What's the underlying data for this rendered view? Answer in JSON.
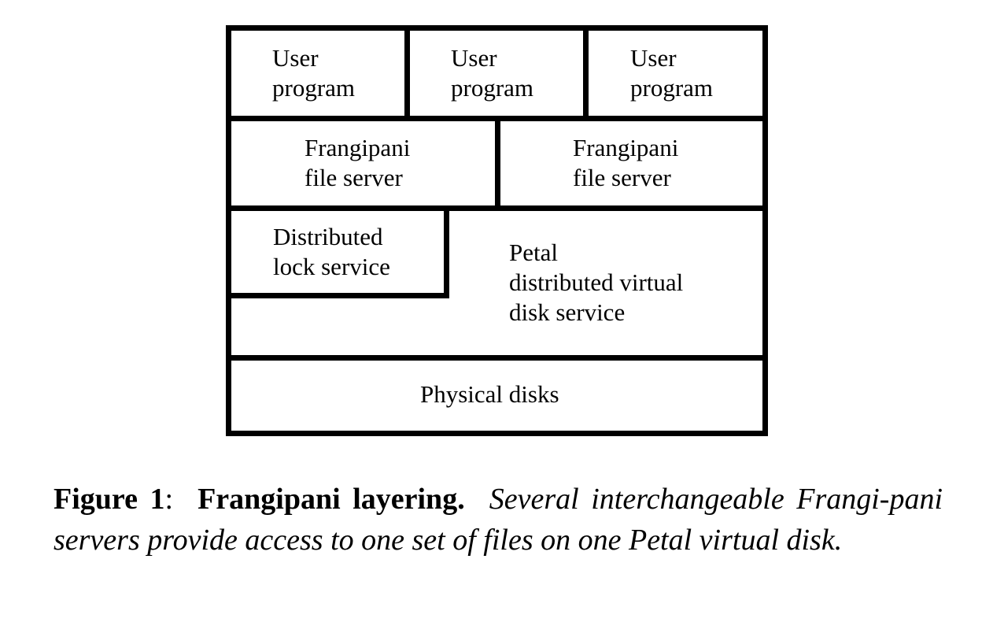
{
  "diagram": {
    "user_programs": [
      {
        "line1": "User",
        "line2": "program"
      },
      {
        "line1": "User",
        "line2": "program"
      },
      {
        "line1": "User",
        "line2": "program"
      }
    ],
    "file_servers": [
      {
        "line1": "Frangipani",
        "line2": "file server"
      },
      {
        "line1": "Frangipani",
        "line2": "file server"
      }
    ],
    "lock_service": {
      "line1": "Distributed",
      "line2": "lock service"
    },
    "petal": {
      "line1": "Petal",
      "line2": "distributed virtual",
      "line3": "disk service"
    },
    "physical_disks": {
      "label": "Physical disks"
    }
  },
  "caption": {
    "figure_number": "Figure 1",
    "separator": ":",
    "title": "Frangipani layering.",
    "text": "Several interchangeable Frangi-pani servers provide access to one set of files on one Petal virtual disk."
  }
}
